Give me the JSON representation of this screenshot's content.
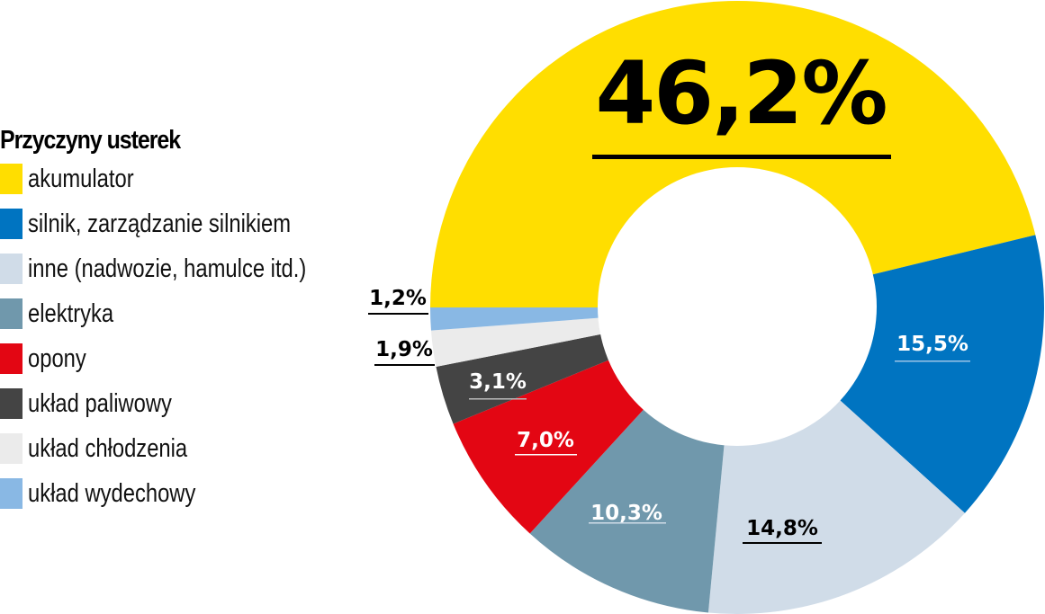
{
  "chart_data": {
    "type": "pie",
    "variant": "donut",
    "title": "Przyczyny usterek",
    "categories": [
      "akumulator",
      "silnik, zarządzanie silnikiem",
      "inne (nadwozie, hamulce itd.)",
      "elektryka",
      "opony",
      "układ paliwowy",
      "układ chłodzenia",
      "układ wydechowy"
    ],
    "values": [
      46.2,
      15.5,
      14.8,
      10.3,
      7.0,
      3.1,
      1.9,
      1.2
    ],
    "value_labels": [
      "46,2%",
      "15,5%",
      "14,8%",
      "10,3%",
      "7,0%",
      "3,1%",
      "1,9%",
      "1,2%"
    ],
    "colors": [
      "#FFDE00",
      "#0074C1",
      "#D0DCE8",
      "#7098AC",
      "#E30613",
      "#444444",
      "#EBEBEB",
      "#89B8E4"
    ],
    "legend_position": "left"
  },
  "legend": {
    "title": "Przyczyny usterek",
    "items": [
      {
        "label": "akumulator",
        "color": "#FFDE00"
      },
      {
        "label": "silnik, zarządzanie silnikiem",
        "color": "#0074C1"
      },
      {
        "label": "inne (nadwozie, hamulce itd.)",
        "color": "#D0DCE8"
      },
      {
        "label": "elektryka",
        "color": "#7098AC"
      },
      {
        "label": "opony",
        "color": "#E30613"
      },
      {
        "label": "układ paliwowy",
        "color": "#444444"
      },
      {
        "label": "układ chłodzenia",
        "color": "#EBEBEB"
      },
      {
        "label": "układ wydechowy",
        "color": "#89B8E4"
      }
    ]
  },
  "labels": {
    "akumulator": "46,2%",
    "silnik": "15,5%",
    "inne": "14,8%",
    "elektryka": "10,3%",
    "opony": "7,0%",
    "paliwowy": "3,1%",
    "chlodzenia": "1,9%",
    "wydechowy": "1,2%"
  }
}
